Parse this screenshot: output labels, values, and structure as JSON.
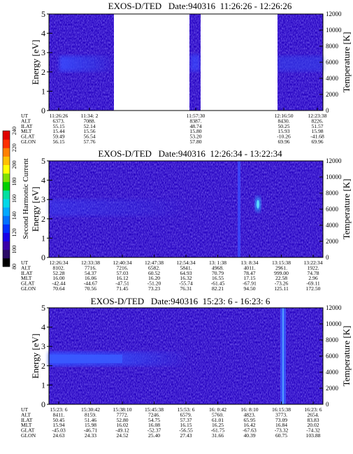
{
  "panels": [
    {
      "title": "EXOS-D/TED   Date:940316  11:26:26 - 12:26:26",
      "ylabel_left": "Energy [eV]",
      "ylabel_right": "Temperature [K]",
      "yticks_left": [
        "0",
        "1",
        "2",
        "3",
        "4",
        "5"
      ],
      "yticks_right": [
        "0",
        "2000",
        "4000",
        "6000",
        "8000",
        "10000",
        "12000"
      ],
      "row_labels": [
        "UT",
        "ALT",
        "ILAT",
        "MLT",
        "GLAT",
        "GLON"
      ],
      "columns": [
        [
          "11:26:26",
          "6373.",
          "55.15",
          "15.44",
          "59.49",
          "56.15"
        ],
        [
          "11:34: 2",
          "7088.",
          "52.14",
          "15.56",
          "56.54",
          "57.76"
        ],
        [
          "11:57:30",
          "8387.",
          "48.74",
          "15.80",
          "53.20",
          "57.80"
        ],
        [
          "12:16:50",
          "8430.",
          "50.25",
          "15.93",
          "-10.26",
          "69.96"
        ],
        [
          "12:23:38",
          "8226.",
          "51.57",
          "15.98",
          "-41.68",
          "69.96"
        ]
      ]
    },
    {
      "title": "EXOS-D/TED   Date:940316  12:26:34 - 13:22:34",
      "ylabel_left": "Energy [eV]",
      "ylabel_right": "Temperature [K]",
      "yticks_left": [
        "0",
        "1",
        "2",
        "3",
        "4",
        "5"
      ],
      "yticks_right": [
        "0",
        "2000",
        "4000",
        "6000",
        "8000",
        "10000",
        "12000"
      ],
      "row_labels": [
        "UT",
        "ALT",
        "ILAT",
        "MLT",
        "GLAT",
        "GLON"
      ],
      "columns": [
        [
          "12:26:34",
          "8102.",
          "52.28",
          "16.00",
          "-42.44",
          "70.64"
        ],
        [
          "12:33:38",
          "7716.",
          "54.37",
          "16.06",
          "-44.67",
          "70.56"
        ],
        [
          "12:40:34",
          "7216.",
          "57.03",
          "16.12",
          "-47.51",
          "71.45"
        ],
        [
          "12:47:38",
          "6582.",
          "60.52",
          "16.20",
          "-51.20",
          "73.23"
        ],
        [
          "12:54:34",
          "5841.",
          "64.93",
          "16.32",
          "-55.74",
          "76.31"
        ],
        [
          "13: 1:38",
          "4968.",
          "70.79",
          "16.55",
          "-61.45",
          "82.21"
        ],
        [
          "13: 8:34",
          "4011.",
          "78.47",
          "17.15",
          "-67.91",
          "94.50"
        ],
        [
          "13:15:38",
          "2961.",
          "999.00",
          "22.58",
          "-73.26",
          "125.11"
        ],
        [
          "13:22:34",
          "1922.",
          "74.78",
          "2.96",
          "-69.11",
          "172.50"
        ]
      ]
    },
    {
      "title": "EXOS-D/TED   Date:940316  15:23: 6 - 16:23: 6",
      "ylabel_left": "Energy [eV]",
      "ylabel_right": "Temperature [K]",
      "yticks_left": [
        "0",
        "1",
        "2",
        "3",
        "4",
        "5"
      ],
      "yticks_right": [
        "0",
        "2000",
        "4000",
        "6000",
        "8000",
        "10000",
        "12000"
      ],
      "row_labels": [
        "UT",
        "ALT",
        "ILAT",
        "MLT",
        "GLAT",
        "GLON"
      ],
      "columns": [
        [
          "15:23: 6",
          "8411.",
          "50.45",
          "15.94",
          "-45.03",
          "24.63"
        ],
        [
          "15:30:42",
          "8159.",
          "51.46",
          "15.98",
          "-46.71",
          "24.33"
        ],
        [
          "15:38:10",
          "7772.",
          "52.80",
          "16.02",
          "-49.12",
          "24.52"
        ],
        [
          "15:45:38",
          "7246.",
          "54.75",
          "16.08",
          "-52.37",
          "25.40"
        ],
        [
          "15:53: 6",
          "6579.",
          "57.37",
          "16.15",
          "-56.55",
          "27.43"
        ],
        [
          "16: 0:42",
          "5760.",
          "61.01",
          "16.25",
          "-61.75",
          "31.66"
        ],
        [
          "16: 8:10",
          "4823.",
          "65.95",
          "16.42",
          "-67.63",
          "40.39"
        ],
        [
          "16:15:38",
          "3773.",
          "73.09",
          "16.84",
          "-73.32",
          "60.75"
        ],
        [
          "16:23: 6",
          "2654.",
          "83.83",
          "20.02",
          "-74.32",
          "103.88"
        ]
      ]
    }
  ],
  "colorbar": {
    "label": "Second Harmonic Current",
    "ticks": [
      "80",
      "100",
      "120",
      "140",
      "160",
      "180",
      "200",
      "220",
      "240"
    ]
  },
  "chart_data": [
    {
      "type": "heatmap",
      "title": "EXOS-D/TED   Date:940316  11:26:26 - 12:26:26",
      "xlabel": "",
      "ylabel": "Energy [eV]",
      "ylabel_right": "Temperature [K]",
      "ylim": [
        0,
        5
      ],
      "ylim_right": [
        0,
        12000
      ],
      "x_start": "11:26:26",
      "x_end": "12:26:26",
      "data_gaps": [
        [
          "11:41:00",
          "11:55:40"
        ],
        [
          "11:58:40",
          "12:15:40"
        ]
      ],
      "enhancement": {
        "energy_eV": [
          2.2,
          2.8
        ],
        "time": [
          "11:30:00",
          "11:40:00"
        ]
      },
      "colorscale": {
        "label": "Second Harmonic Current",
        "min": 80,
        "max": 240
      }
    },
    {
      "type": "heatmap",
      "title": "EXOS-D/TED   Date:940316  12:26:34 - 13:22:34",
      "xlabel": "",
      "ylabel": "Energy [eV]",
      "ylabel_right": "Temperature [K]",
      "ylim": [
        0,
        5
      ],
      "ylim_right": [
        0,
        12000
      ],
      "x_start": "12:26:34",
      "x_end": "13:22:34",
      "enhancement": {
        "energy_eV": [
          2.6,
          3.2
        ],
        "time": [
          "13:10:30",
          "13:11:30"
        ]
      },
      "colorscale": {
        "label": "Second Harmonic Current",
        "min": 80,
        "max": 240
      }
    },
    {
      "type": "heatmap",
      "title": "EXOS-D/TED   Date:940316  15:23: 6 - 16:23: 6",
      "xlabel": "",
      "ylabel": "Energy [eV]",
      "ylabel_right": "Temperature [K]",
      "ylim": [
        0,
        5
      ],
      "ylim_right": [
        0,
        12000
      ],
      "x_start": "15:23:06",
      "x_end": "16:23:06",
      "enhancement": {
        "energy_eV": [
          2.3,
          2.8
        ],
        "time": [
          "15:23:06",
          "15:41:00"
        ]
      },
      "colorscale": {
        "label": "Second Harmonic Current",
        "min": 80,
        "max": 240
      }
    }
  ]
}
